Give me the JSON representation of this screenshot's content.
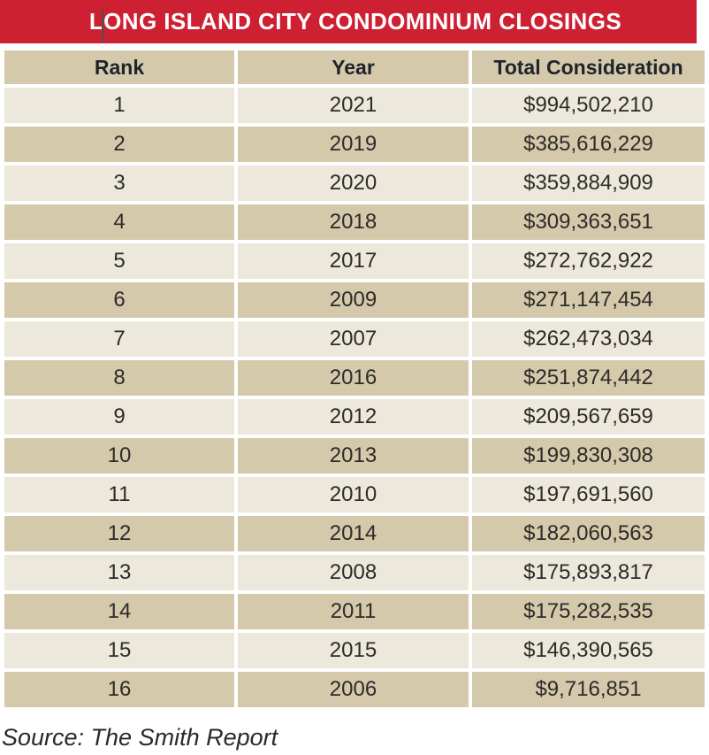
{
  "banner": {
    "title": "LONG ISLAND CITY CONDOMINIUM CLOSINGS"
  },
  "colors": {
    "banner_red": "#ce2033",
    "row_tan": "#d4c9ab",
    "row_cream": "#ece8dc",
    "text_ink": "#2e2b28",
    "title_white": "#ffffff"
  },
  "table": {
    "columns": [
      "Rank",
      "Year",
      "Total Consideration"
    ],
    "rows": [
      {
        "rank": "1",
        "year": "2021",
        "total": "$994,502,210"
      },
      {
        "rank": "2",
        "year": "2019",
        "total": "$385,616,229"
      },
      {
        "rank": "3",
        "year": "2020",
        "total": "$359,884,909"
      },
      {
        "rank": "4",
        "year": "2018",
        "total": "$309,363,651"
      },
      {
        "rank": "5",
        "year": "2017",
        "total": "$272,762,922"
      },
      {
        "rank": "6",
        "year": "2009",
        "total": "$271,147,454"
      },
      {
        "rank": "7",
        "year": "2007",
        "total": "$262,473,034"
      },
      {
        "rank": "8",
        "year": "2016",
        "total": "$251,874,442"
      },
      {
        "rank": "9",
        "year": "2012",
        "total": "$209,567,659"
      },
      {
        "rank": "10",
        "year": "2013",
        "total": "$199,830,308"
      },
      {
        "rank": "11",
        "year": "2010",
        "total": "$197,691,560"
      },
      {
        "rank": "12",
        "year": "2014",
        "total": "$182,060,563"
      },
      {
        "rank": "13",
        "year": "2008",
        "total": "$175,893,817"
      },
      {
        "rank": "14",
        "year": "2011",
        "total": "$175,282,535"
      },
      {
        "rank": "15",
        "year": "2015",
        "total": "$146,390,565"
      },
      {
        "rank": "16",
        "year": "2006",
        "total": "$9,716,851"
      }
    ]
  },
  "source": "Source: The Smith Report",
  "chart_data": {
    "type": "table",
    "title": "LONG ISLAND CITY CONDOMINIUM CLOSINGS",
    "columns": [
      "Rank",
      "Year",
      "Total Consideration"
    ],
    "rows": [
      [
        1,
        2021,
        "$994,502,210"
      ],
      [
        2,
        2019,
        "$385,616,229"
      ],
      [
        3,
        2020,
        "$359,884,909"
      ],
      [
        4,
        2018,
        "$309,363,651"
      ],
      [
        5,
        2017,
        "$272,762,922"
      ],
      [
        6,
        2009,
        "$271,147,454"
      ],
      [
        7,
        2007,
        "$262,473,034"
      ],
      [
        8,
        2016,
        "$251,874,442"
      ],
      [
        9,
        2012,
        "$209,567,659"
      ],
      [
        10,
        2013,
        "$199,830,308"
      ],
      [
        11,
        2010,
        "$197,691,560"
      ],
      [
        12,
        2014,
        "$182,060,563"
      ],
      [
        13,
        2008,
        "$175,893,817"
      ],
      [
        14,
        2011,
        "$175,282,535"
      ],
      [
        15,
        2015,
        "$146,390,565"
      ],
      [
        16,
        2006,
        "$9,716,851"
      ]
    ],
    "total_consideration_values": [
      994502210,
      385616229,
      359884909,
      309363651,
      272762922,
      271147454,
      262473034,
      251874442,
      209567659,
      199830308,
      197691560,
      182060563,
      175893817,
      175282535,
      146390565,
      9716851
    ],
    "source": "Source: The Smith Report"
  }
}
